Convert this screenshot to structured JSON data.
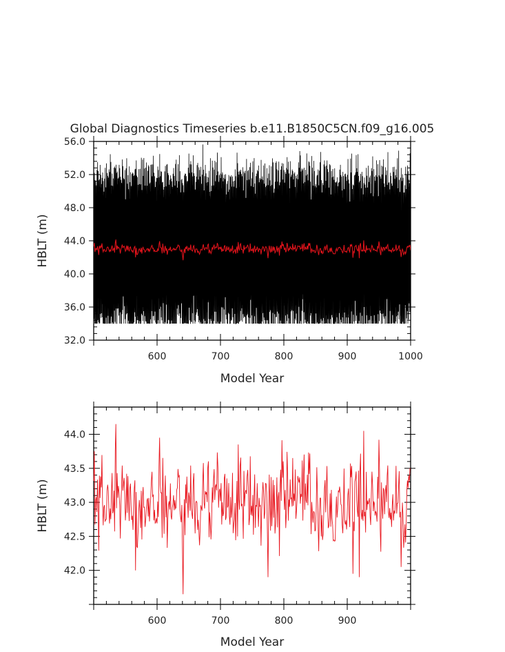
{
  "chart_data": [
    {
      "type": "line",
      "title": "Global Diagnostics Timeseries b.e11.B1850C5CN.f09_g16.005",
      "xlabel": "Model Year",
      "ylabel": "HBLT (m)",
      "xlim": [
        500,
        1000
      ],
      "ylim": [
        32,
        56
      ],
      "xticks": [
        600,
        700,
        800,
        900,
        1000
      ],
      "yticks": [
        32.0,
        36.0,
        40.0,
        44.0,
        48.0,
        52.0,
        56.0
      ],
      "ytick_labels": [
        "32.0",
        "36.0",
        "40.0",
        "44.0",
        "48.0",
        "52.0",
        "56.0"
      ],
      "series": [
        {
          "color": "#000000",
          "resolution": "monthly",
          "x_range": [
            500,
            1000
          ],
          "mean": 43.0,
          "seasonal_amplitude": 7.5,
          "min": 34.0,
          "max": 55.8
        },
        {
          "color": "#e8141c",
          "resolution": "annual",
          "x_range": [
            500,
            1000
          ],
          "mean": 43.0,
          "min": 41.65,
          "max": 44.15
        }
      ]
    },
    {
      "type": "line",
      "title": "",
      "xlabel": "Model Year",
      "ylabel": "HBLT (m)",
      "xlim": [
        500,
        1000
      ],
      "ylim": [
        41.5,
        44.4
      ],
      "xticks": [
        600,
        700,
        800,
        900
      ],
      "yticks": [
        42.0,
        42.5,
        43.0,
        43.5,
        44.0
      ],
      "ytick_labels": [
        "42.0",
        "42.5",
        "43.0",
        "43.5",
        "44.0"
      ],
      "series": [
        {
          "color": "#e8141c",
          "resolution": "annual",
          "x_range": [
            500,
            999
          ],
          "mean": 43.0,
          "min": 41.65,
          "max": 44.15,
          "highlights": [
            {
              "x": 501,
              "y": 43.75
            },
            {
              "x": 535,
              "y": 44.15
            },
            {
              "x": 566,
              "y": 42.0
            },
            {
              "x": 604,
              "y": 43.95
            },
            {
              "x": 641,
              "y": 41.65
            },
            {
              "x": 728,
              "y": 43.85
            },
            {
              "x": 775,
              "y": 41.9
            },
            {
              "x": 909,
              "y": 41.95
            },
            {
              "x": 919,
              "y": 41.9
            },
            {
              "x": 926,
              "y": 44.05
            },
            {
              "x": 950,
              "y": 43.92
            },
            {
              "x": 985,
              "y": 42.05
            }
          ]
        }
      ]
    }
  ]
}
